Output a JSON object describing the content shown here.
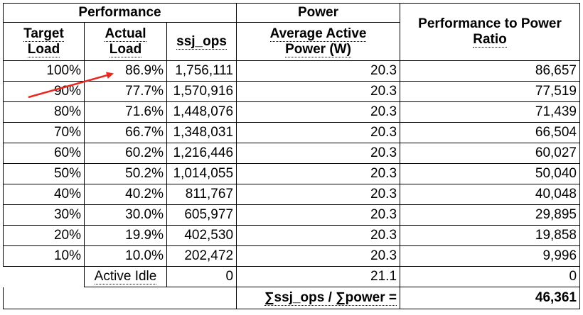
{
  "header": {
    "group_performance": "Performance",
    "group_power": "Power",
    "ratio_line1": "Performance to Power",
    "ratio_line2": "Ratio",
    "target_line1": "Target",
    "target_line2": "Load",
    "actual_line1": "Actual",
    "actual_line2": "Load",
    "ssj_ops": "ssj_ops",
    "power_line1": "Average Active",
    "power_line2": "Power (W)"
  },
  "rows": [
    {
      "target": "100%",
      "actual": "86.9%",
      "ops": "1,756,111",
      "power": "20.3",
      "ratio": "86,657"
    },
    {
      "target": "90%",
      "actual": "77.7%",
      "ops": "1,570,916",
      "power": "20.3",
      "ratio": "77,519"
    },
    {
      "target": "80%",
      "actual": "71.6%",
      "ops": "1,448,076",
      "power": "20.3",
      "ratio": "71,439"
    },
    {
      "target": "70%",
      "actual": "66.7%",
      "ops": "1,348,031",
      "power": "20.3",
      "ratio": "66,504"
    },
    {
      "target": "60%",
      "actual": "60.2%",
      "ops": "1,216,446",
      "power": "20.3",
      "ratio": "60,027"
    },
    {
      "target": "50%",
      "actual": "50.2%",
      "ops": "1,014,055",
      "power": "20.3",
      "ratio": "50,040"
    },
    {
      "target": "40%",
      "actual": "40.2%",
      "ops": "811,767",
      "power": "20.3",
      "ratio": "40,048"
    },
    {
      "target": "30%",
      "actual": "30.0%",
      "ops": "605,977",
      "power": "20.3",
      "ratio": "29,895"
    },
    {
      "target": "20%",
      "actual": "19.9%",
      "ops": "402,530",
      "power": "20.3",
      "ratio": "19,858"
    },
    {
      "target": "10%",
      "actual": "10.0%",
      "ops": "202,472",
      "power": "20.3",
      "ratio": "9,996"
    }
  ],
  "idle": {
    "label": "Active Idle",
    "ops": "0",
    "power": "21.1",
    "ratio": "0"
  },
  "footer": {
    "formula": "∑ssj_ops / ∑power =",
    "total": "46,361"
  },
  "colors": {
    "arrow": "#e8281e",
    "grid": "#000000"
  }
}
